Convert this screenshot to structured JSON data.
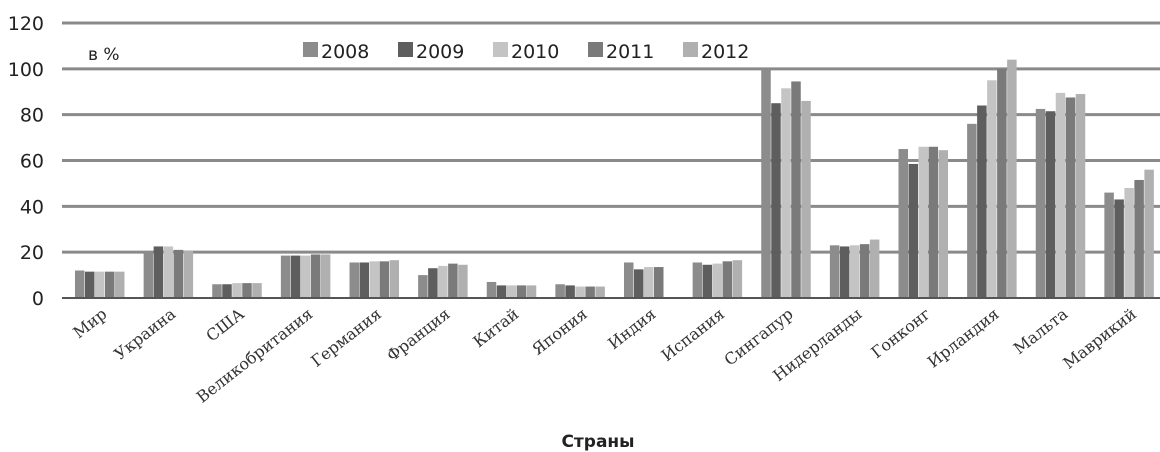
{
  "chart_data": {
    "type": "bar",
    "unit_label": "в %",
    "xlabel": "Страны",
    "ylabel": "",
    "ylim": [
      0,
      120
    ],
    "yticks": [
      0,
      20,
      40,
      60,
      80,
      100,
      120
    ],
    "grid": true,
    "legend_position": "top",
    "categories": [
      "Мир",
      "Украина",
      "США",
      "Великобритания",
      "Германия",
      "Франция",
      "Китай",
      "Япония",
      "Индия",
      "Испания",
      "Сингапур",
      "Нидерланды",
      "Гонконг",
      "Ирландия",
      "Мальта",
      "Маврикий"
    ],
    "series": [
      {
        "name": "2008",
        "color": "#8c8c8c",
        "values": [
          12,
          20,
          6,
          18.5,
          15.5,
          10,
          7,
          6,
          15.5,
          15.5,
          100,
          23,
          65,
          76,
          82.5,
          46
        ]
      },
      {
        "name": "2009",
        "color": "#5e5e5e",
        "values": [
          11.5,
          22.5,
          6,
          18.5,
          15.5,
          13,
          5.5,
          5.5,
          12.5,
          14.5,
          85,
          22.5,
          58.5,
          84,
          81.5,
          43
        ]
      },
      {
        "name": "2010",
        "color": "#c4c4c4",
        "values": [
          11.5,
          22.5,
          6.5,
          18.5,
          16,
          14,
          5.5,
          5,
          13.5,
          15,
          91.5,
          23,
          66,
          95,
          89.5,
          48
        ]
      },
      {
        "name": "2011",
        "color": "#7a7a7a",
        "values": [
          11.5,
          21,
          6.5,
          19,
          16,
          15,
          5.5,
          5,
          13.5,
          16,
          94.5,
          23.5,
          66,
          100,
          87.5,
          51.5
        ]
      },
      {
        "name": "2012",
        "color": "#b0b0b0",
        "values": [
          11.5,
          20.5,
          6.5,
          19,
          16.5,
          14.5,
          5.5,
          5,
          null,
          16.5,
          86,
          25.5,
          64.5,
          104,
          89,
          56
        ]
      }
    ]
  }
}
